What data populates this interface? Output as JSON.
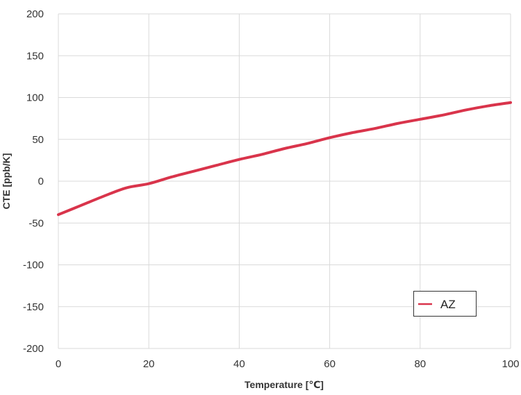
{
  "chart_data": {
    "type": "line",
    "title": "",
    "xlabel": "Temperature [℃]",
    "ylabel": "CTE [ppb/K]",
    "xlim": [
      0,
      100
    ],
    "ylim": [
      -200,
      200
    ],
    "x_ticks": [
      "0",
      "20",
      "40",
      "60",
      "80",
      "100"
    ],
    "y_ticks": [
      "200",
      "150",
      "100",
      "50",
      "0",
      "-50",
      "-100",
      "-150",
      "-200"
    ],
    "grid": true,
    "legend_position": "bottom-right",
    "series": [
      {
        "name": "AZ",
        "color": "#d9344b",
        "x": [
          0,
          5,
          10,
          15,
          20,
          25,
          30,
          35,
          40,
          45,
          50,
          55,
          60,
          65,
          70,
          75,
          80,
          85,
          90,
          95,
          100
        ],
        "y": [
          -40,
          -29,
          -18,
          -8,
          -3,
          5,
          12,
          19,
          26,
          32,
          39,
          45,
          52,
          58,
          63,
          69,
          74,
          79,
          85,
          90,
          94
        ]
      }
    ]
  }
}
